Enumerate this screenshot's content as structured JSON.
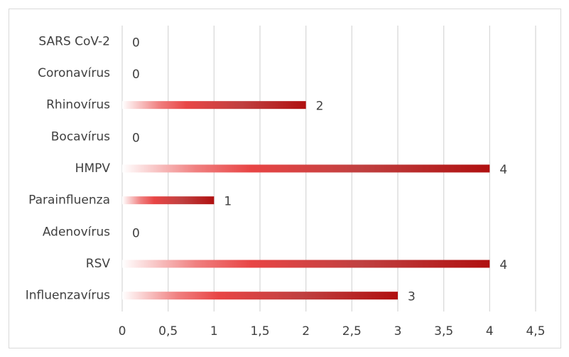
{
  "chart_data": {
    "type": "bar",
    "orientation": "horizontal",
    "categories": [
      "SARS CoV-2",
      "Coronavírus",
      "Rhinovírus",
      "Bocavírus",
      "HMPV",
      "Parainfluenza",
      "Adenovírus",
      "RSV",
      "Influenzavírus"
    ],
    "values": [
      0,
      0,
      2,
      0,
      4,
      1,
      0,
      4,
      3
    ],
    "color": "#c00000",
    "xlim": [
      0,
      4.5
    ],
    "xticks": [
      0,
      {
        "value": 0.5,
        "label": "0,5"
      },
      1,
      {
        "value": 1.5,
        "label": "1,5"
      },
      2,
      {
        "value": 2.5,
        "label": "2,5"
      },
      3,
      {
        "value": 3.5,
        "label": "3,5"
      },
      4,
      {
        "value": 4.5,
        "label": "4,5"
      }
    ],
    "grid": true
  }
}
